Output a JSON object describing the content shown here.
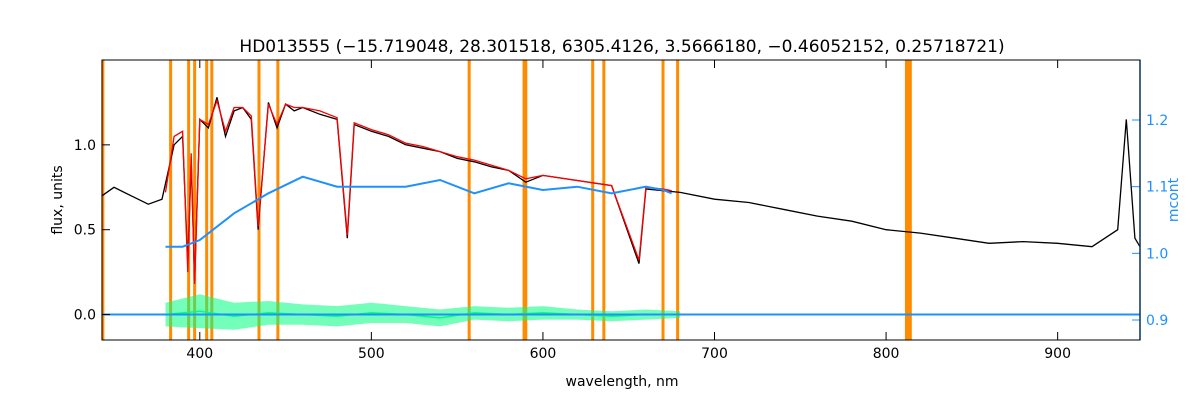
{
  "chart_data": {
    "type": "line",
    "title": "HD013555   (−15.719048, 28.301518, 6305.4126, 3.5666180, −0.46052152, 0.25718721)",
    "xlabel": "wavelength, nm",
    "ylabel": "flux, units",
    "y2label": "mcont",
    "xlim": [
      343,
      948
    ],
    "ylim": [
      -0.15,
      1.5
    ],
    "y2lim": [
      0.87,
      1.29
    ],
    "x_ticks": [
      400,
      500,
      600,
      700,
      800,
      900
    ],
    "y_ticks": [
      0.0,
      0.5,
      1.0
    ],
    "y_tick_labels": [
      "0.0",
      "0.5",
      "1.0"
    ],
    "y2_ticks": [
      0.9,
      1.0,
      1.1,
      1.2
    ],
    "y2_tick_labels": [
      "0.9",
      "1.0",
      "1.1",
      "1.2"
    ],
    "grid": false,
    "colors": {
      "observed": "#000000",
      "model": "#ff0000",
      "continuum": "#1e90ff",
      "residuals": "#00ff7f",
      "masks": "#ff8c00",
      "axis_right": "#1e90ff"
    },
    "mask_lines_nm": [
      343.5,
      383.0,
      393.5,
      397.0,
      404.0,
      407.0,
      434.5,
      445.5,
      557.0,
      589.0,
      590.0,
      629.0,
      635.5,
      670.0,
      678.5
    ],
    "mask_bands_nm": [
      [
        811.0,
        815.0
      ]
    ],
    "series": [
      {
        "key": "observed",
        "x": [
          343,
          350,
          360,
          370,
          378,
          385,
          390,
          393,
          395,
          397,
          400,
          405,
          410,
          415,
          420,
          425,
          430,
          434,
          440,
          445,
          450,
          455,
          460,
          470,
          480,
          486,
          490,
          500,
          510,
          520,
          530,
          540,
          550,
          560,
          570,
          580,
          590,
          600,
          620,
          640,
          656,
          660,
          680,
          700,
          720,
          740,
          760,
          780,
          800,
          820,
          840,
          860,
          880,
          900,
          920,
          935,
          940,
          945,
          948
        ],
        "y": [
          0.7,
          0.75,
          0.7,
          0.65,
          0.68,
          1.0,
          1.05,
          0.3,
          0.9,
          0.2,
          1.15,
          1.1,
          1.28,
          1.05,
          1.2,
          1.22,
          1.15,
          0.5,
          1.25,
          1.1,
          1.24,
          1.2,
          1.22,
          1.18,
          1.15,
          0.45,
          1.12,
          1.08,
          1.05,
          1.0,
          0.98,
          0.96,
          0.92,
          0.9,
          0.87,
          0.85,
          0.78,
          0.82,
          0.79,
          0.76,
          0.3,
          0.74,
          0.72,
          0.68,
          0.66,
          0.62,
          0.58,
          0.55,
          0.5,
          0.48,
          0.45,
          0.42,
          0.43,
          0.42,
          0.4,
          0.5,
          1.15,
          0.45,
          0.4
        ]
      },
      {
        "key": "model",
        "x": [
          380,
          385,
          390,
          393,
          395,
          397,
          400,
          405,
          410,
          415,
          420,
          425,
          430,
          434,
          440,
          445,
          450,
          455,
          460,
          470,
          480,
          486,
          490,
          500,
          510,
          520,
          530,
          540,
          550,
          560,
          570,
          580,
          590,
          600,
          620,
          640,
          656,
          660,
          670,
          675
        ],
        "y": [
          0.72,
          1.05,
          1.08,
          0.25,
          0.95,
          0.18,
          1.15,
          1.12,
          1.26,
          1.08,
          1.22,
          1.22,
          1.17,
          0.52,
          1.24,
          1.12,
          1.24,
          1.22,
          1.22,
          1.2,
          1.16,
          0.47,
          1.13,
          1.09,
          1.06,
          1.01,
          0.99,
          0.96,
          0.93,
          0.91,
          0.88,
          0.85,
          0.8,
          0.82,
          0.79,
          0.76,
          0.32,
          0.75,
          0.74,
          0.73
        ]
      },
      {
        "key": "continuum",
        "x": [
          380,
          390,
          400,
          420,
          440,
          460,
          480,
          500,
          520,
          540,
          560,
          580,
          600,
          620,
          640,
          660,
          670,
          675
        ],
        "y2": [
          1.01,
          1.01,
          1.02,
          1.06,
          1.09,
          1.115,
          1.1,
          1.1,
          1.1,
          1.11,
          1.09,
          1.105,
          1.095,
          1.1,
          1.09,
          1.1,
          1.095,
          1.09
        ]
      },
      {
        "key": "residuals",
        "x": [
          380,
          400,
          420,
          440,
          460,
          480,
          500,
          520,
          540,
          560,
          580,
          600,
          620,
          640,
          660,
          680
        ],
        "y": [
          0.0,
          0.02,
          -0.01,
          0.01,
          0.0,
          -0.01,
          0.01,
          0.0,
          -0.02,
          0.01,
          0.0,
          0.01,
          0.0,
          -0.01,
          0.0,
          0.0
        ],
        "noise": [
          0.07,
          0.1,
          0.08,
          0.07,
          0.06,
          0.06,
          0.06,
          0.05,
          0.05,
          0.04,
          0.04,
          0.04,
          0.03,
          0.03,
          0.03,
          0.02
        ]
      },
      {
        "key": "baseline",
        "x": [
          343,
          948
        ],
        "y": [
          0.0,
          0.0
        ]
      }
    ]
  }
}
